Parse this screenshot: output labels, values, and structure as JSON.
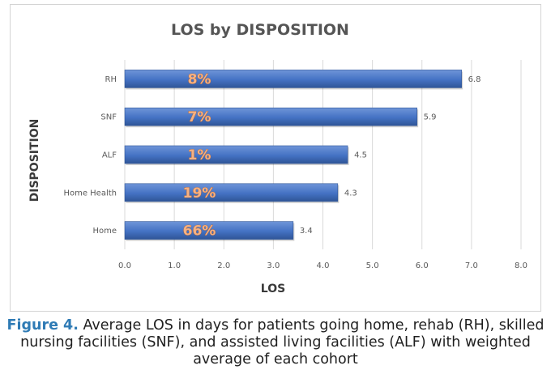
{
  "chart_data": {
    "type": "bar",
    "orientation": "horizontal",
    "title": "LOS by DISPOSITION",
    "xlabel": "LOS",
    "ylabel": "DISPOSITION",
    "xlim": [
      0,
      8
    ],
    "xticks": [
      "0.0",
      "1.0",
      "2.0",
      "3.0",
      "4.0",
      "5.0",
      "6.0",
      "7.0",
      "8.0"
    ],
    "grid": true,
    "categories": [
      "RH",
      "SNF",
      "ALF",
      "Home Health",
      "Home"
    ],
    "values": [
      6.8,
      5.9,
      4.5,
      4.3,
      3.4
    ],
    "value_labels": [
      "6.8",
      "5.9",
      "4.5",
      "4.3",
      "3.4"
    ],
    "percent_labels": [
      "8%",
      "7%",
      "1%",
      "19%",
      "66%"
    ],
    "bar_color": "#4472c4",
    "bar_color_dark": "#2f5597",
    "percent_label_color": "#f4b183"
  },
  "caption": {
    "label": "Figure 4.",
    "text": " Average LOS in days for patients going home, rehab (RH), skilled nursing facilities (SNF), and assisted living facilities (ALF) with weighted average of each cohort"
  }
}
